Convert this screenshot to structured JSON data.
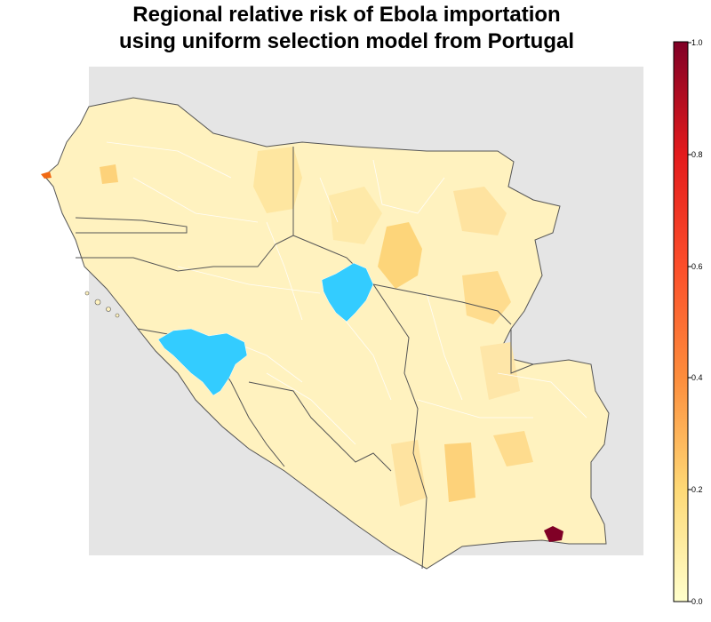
{
  "title_line1": "Regional relative risk of Ebola importation",
  "title_line2": "using uniform selection model from Portugal",
  "colorbar": {
    "min": 0.0,
    "max": 1.0,
    "tick_labels": [
      "1.0",
      "0.8",
      "0.6",
      "0.4",
      "0.2",
      "0.0"
    ],
    "colors": {
      "c0": "#ffffcc",
      "c02": "#fed976",
      "c04": "#fd8d3c",
      "c06": "#fc4e2a",
      "c08": "#e31a1c",
      "c10": "#800026"
    }
  },
  "legend_colors": {
    "outbreak_source_regions": "#33ccff",
    "outside_region": "#e5e5e5",
    "base_low_risk": "#fff2bf",
    "border": "#555555"
  }
}
